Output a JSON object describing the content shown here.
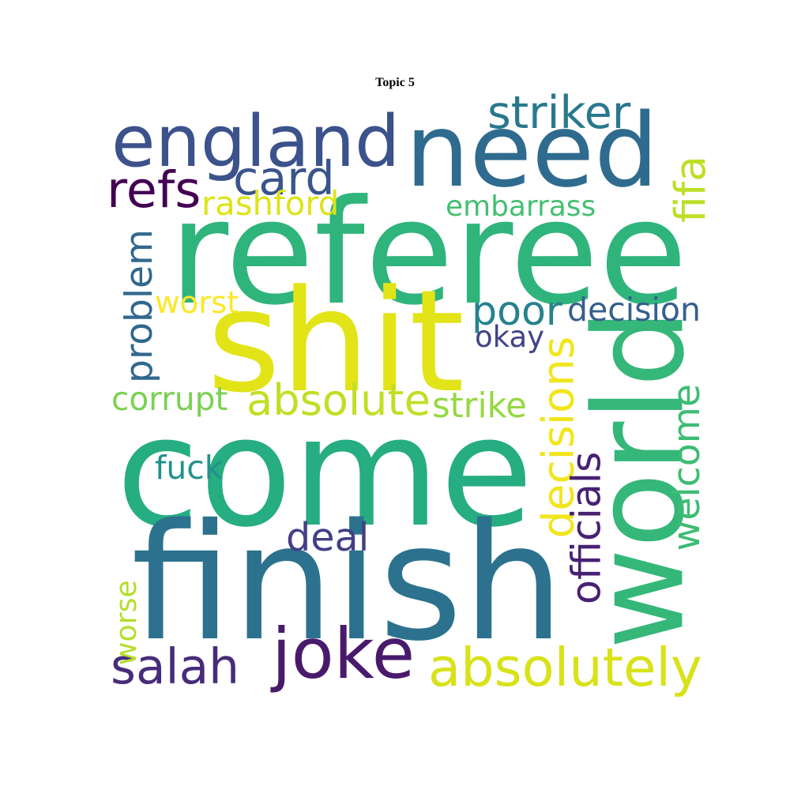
{
  "title": "Topic 5",
  "words": [
    {
      "text": "come",
      "color": "#26ad81"
    },
    {
      "text": "referee",
      "color": "#2fb47c"
    },
    {
      "text": "shit",
      "color": "#e2e418"
    },
    {
      "text": "finish",
      "color": "#2c728e"
    },
    {
      "text": "need",
      "color": "#2f6b8e"
    },
    {
      "text": "england",
      "color": "#3b528b"
    },
    {
      "text": "world",
      "color": "#35b779"
    },
    {
      "text": "joke",
      "color": "#481a6c"
    },
    {
      "text": "absolutely",
      "color": "#d8e219"
    },
    {
      "text": "absolute",
      "color": "#c0df25"
    },
    {
      "text": "salah",
      "color": "#472c7a"
    },
    {
      "text": "welcome",
      "color": "#3dbc74"
    },
    {
      "text": "decisions",
      "color": "#f1e51d"
    },
    {
      "text": "problem",
      "color": "#31688e"
    },
    {
      "text": "striker",
      "color": "#29788e"
    },
    {
      "text": "card",
      "color": "#3a548c"
    },
    {
      "text": "refs",
      "color": "#440154"
    },
    {
      "text": "poor",
      "color": "#26828e"
    },
    {
      "text": "decision",
      "color": "#355f8d"
    },
    {
      "text": "deal",
      "color": "#433e85"
    },
    {
      "text": "embarrass",
      "color": "#44bf70"
    },
    {
      "text": "rashford",
      "color": "#dde318"
    },
    {
      "text": "fifa",
      "color": "#bddf26"
    },
    {
      "text": "officials",
      "color": "#482173"
    },
    {
      "text": "corrupt",
      "color": "#7ad151"
    },
    {
      "text": "strike",
      "color": "#95d840"
    },
    {
      "text": "okay",
      "color": "#414487"
    },
    {
      "text": "fuck",
      "color": "#21918c"
    },
    {
      "text": "worst",
      "color": "#fde725"
    },
    {
      "text": "worse",
      "color": "#b5de2b"
    }
  ]
}
